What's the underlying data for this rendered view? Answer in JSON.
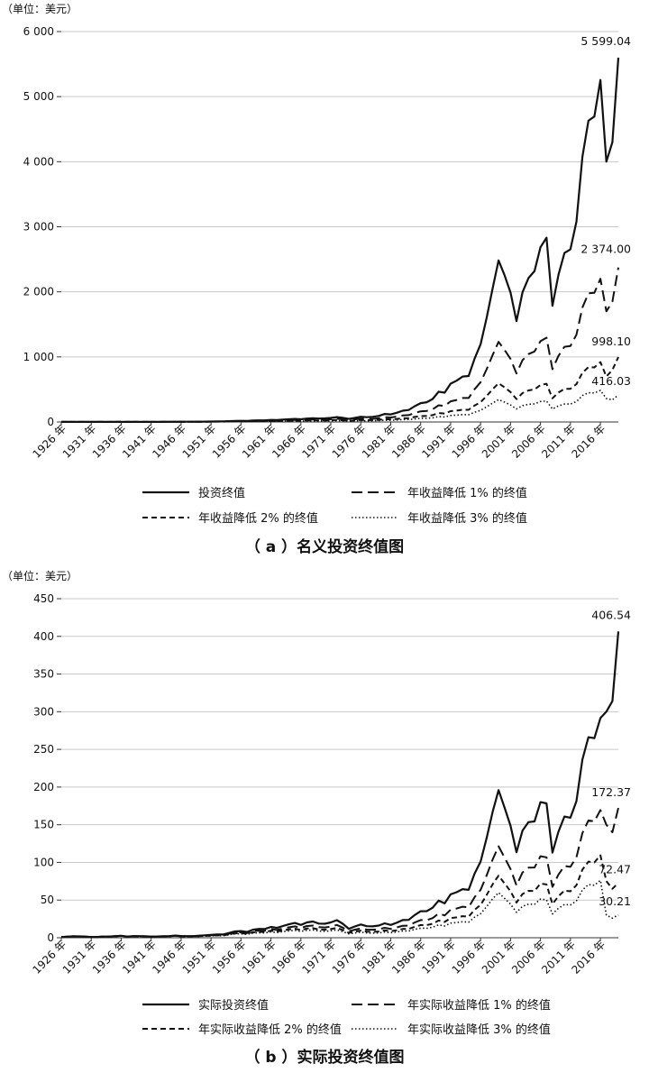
{
  "chart_data": [
    {
      "type": "line",
      "unit": "（单位：美元）",
      "caption": "（ a ）名义投资终值图",
      "ylim": [
        0,
        6000
      ],
      "yticks": [
        0,
        1000,
        2000,
        3000,
        4000,
        5000,
        6000
      ],
      "ytick_labels": [
        "0",
        "1 000",
        "2 000",
        "3 000",
        "4 000",
        "5 000",
        "6 000"
      ],
      "grid": true,
      "legend_position": "bottom",
      "x": [
        1926,
        1927,
        1928,
        1929,
        1930,
        1931,
        1932,
        1933,
        1934,
        1935,
        1936,
        1937,
        1938,
        1939,
        1940,
        1941,
        1942,
        1943,
        1944,
        1945,
        1946,
        1947,
        1948,
        1949,
        1950,
        1951,
        1952,
        1953,
        1954,
        1955,
        1956,
        1957,
        1958,
        1959,
        1960,
        1961,
        1962,
        1963,
        1964,
        1965,
        1966,
        1967,
        1968,
        1969,
        1970,
        1971,
        1972,
        1973,
        1974,
        1975,
        1976,
        1977,
        1978,
        1979,
        1980,
        1981,
        1982,
        1983,
        1984,
        1985,
        1986,
        1987,
        1988,
        1989,
        1990,
        1991,
        1992,
        1993,
        1994,
        1995,
        1996,
        1997,
        1998,
        1999,
        2000,
        2001,
        2002,
        2003,
        2004,
        2005,
        2006,
        2007,
        2008,
        2009,
        2010,
        2011,
        2012,
        2013,
        2014,
        2015,
        2016,
        2017,
        2018,
        2019
      ],
      "xtick_labels": [
        "1926 年",
        "1931 年",
        "1936 年",
        "1941 年",
        "1946 年",
        "1951 年",
        "1956 年",
        "1961 年",
        "1966 年",
        "1971 年",
        "1976 年",
        "1981 年",
        "1986 年",
        "1991 年",
        "1996 年",
        "2001 年",
        "2006 年",
        "2011 年",
        "2016 年"
      ],
      "series": [
        {
          "name": "投资终值",
          "dash": "solid",
          "final_label": "5 599.04",
          "values": [
            1.0,
            1.4,
            2.0,
            1.8,
            1.4,
            0.8,
            0.8,
            1.2,
            1.2,
            1.7,
            2.2,
            1.4,
            1.9,
            1.9,
            1.7,
            1.5,
            1.8,
            2.3,
            2.7,
            3.7,
            3.4,
            3.6,
            3.7,
            4.4,
            5.7,
            7.0,
            8.2,
            8.2,
            12.5,
            16.5,
            17.6,
            15.7,
            22.4,
            25.1,
            25.3,
            32.0,
            29.3,
            35.9,
            41.7,
            46.8,
            42.2,
            52.2,
            58.0,
            53.1,
            55.2,
            63.0,
            74.9,
            63.9,
            47.0,
            64.4,
            79.7,
            74.0,
            78.8,
            93.4,
            123,
            117,
            141,
            173,
            184,
            243,
            289,
            303,
            354,
            466,
            451,
            589,
            634,
            698,
            707,
            973,
            1196,
            1595,
            2051,
            2483,
            2257,
            1989,
            1549,
            1994,
            2211,
            2320,
            2686,
            2833,
            1785,
            2257,
            2597,
            2652,
            3077,
            4073,
            4630,
            4694,
            5256,
            4000,
            4300,
            5599.04
          ]
        },
        {
          "name": "年收益降低 1% 的终值",
          "dash": "long",
          "final_label": "2 374.00",
          "values": [
            1.0,
            1.4,
            2.0,
            1.8,
            1.4,
            0.8,
            0.8,
            1.2,
            1.2,
            1.7,
            2.2,
            1.4,
            1.9,
            1.9,
            1.7,
            1.4,
            1.7,
            2.1,
            2.5,
            3.3,
            3.0,
            3.2,
            3.2,
            3.8,
            4.8,
            5.8,
            6.7,
            6.6,
            9.9,
            12.9,
            13.6,
            12.0,
            17.0,
            18.8,
            18.7,
            23.4,
            21.2,
            25.7,
            29.6,
            32.8,
            29.3,
            35.9,
            39.5,
            35.8,
            36.8,
            41.6,
            48.9,
            41.3,
            30.1,
            40.8,
            50.0,
            45.9,
            48.4,
            56.8,
            74.1,
            69.9,
            83.5,
            101,
            106,
            139,
            164,
            170,
            196,
            256,
            245,
            317,
            338,
            368,
            369,
            503,
            612,
            808,
            1028,
            1232,
            1109,
            968,
            746,
            950,
            1044,
            1084,
            1242,
            1296,
            810,
            1014,
            1155,
            1167,
            1341,
            1757,
            1978,
            1985,
            2200,
            1700,
            1850,
            2374.0
          ]
        },
        {
          "name": "年收益降低 2% 的终值",
          "dash": "medium",
          "final_label": "998.10",
          "values": [
            1.0,
            1.4,
            2.0,
            1.8,
            1.4,
            0.8,
            0.8,
            1.2,
            1.2,
            1.7,
            2.2,
            1.4,
            1.9,
            1.9,
            1.7,
            1.3,
            1.6,
            2.0,
            2.3,
            3.0,
            2.7,
            2.8,
            2.8,
            3.3,
            4.1,
            4.9,
            5.5,
            5.4,
            7.9,
            10.1,
            10.5,
            9.2,
            12.8,
            13.9,
            13.7,
            16.9,
            15.1,
            18.1,
            20.6,
            22.6,
            19.9,
            24.1,
            26.3,
            23.5,
            23.9,
            26.7,
            31.0,
            25.9,
            18.7,
            25.1,
            30.4,
            27.6,
            28.8,
            33.5,
            43.2,
            40.3,
            47.7,
            57.2,
            59.5,
            77.0,
            90.0,
            92.4,
            105,
            137,
            129,
            166,
            175,
            189,
            187,
            253,
            305,
            399,
            502,
            596,
            532,
            460,
            352,
            445,
            485,
            500,
            568,
            587,
            364,
            452,
            509,
            510,
            582,
            756,
            843,
            838,
            920,
            700,
            800,
            998.1
          ]
        },
        {
          "name": "年收益降低 3% 的终值",
          "dash": "dotted",
          "final_label": "416.03",
          "values": [
            1.0,
            1.4,
            1.9,
            1.7,
            1.3,
            0.8,
            0.8,
            1.1,
            1.1,
            1.5,
            1.9,
            1.2,
            1.6,
            1.6,
            1.5,
            1.1,
            1.4,
            1.7,
            1.9,
            2.5,
            2.3,
            2.3,
            2.3,
            2.7,
            3.3,
            3.9,
            4.4,
            4.3,
            6.3,
            7.9,
            8.1,
            7.1,
            9.8,
            10.6,
            10.3,
            12.6,
            11.2,
            13.3,
            15.0,
            16.3,
            14.3,
            17.2,
            18.6,
            16.5,
            16.6,
            18.4,
            21.3,
            17.6,
            12.6,
            16.8,
            20.1,
            18.1,
            18.8,
            21.7,
            27.8,
            25.7,
            30.2,
            36.0,
            37.2,
            47.8,
            55.5,
            56.6,
            64.2,
            83,
            78,
            100,
            105,
            113,
            111,
            149,
            179,
            233,
            291,
            343,
            305,
            262,
            199,
            251,
            271,
            278,
            314,
            323,
            200,
            246,
            276,
            276,
            313,
            406,
            450,
            445,
            485,
            360,
            340,
            416.03
          ]
        }
      ],
      "legend": [
        "投资终值",
        "年收益降低 1% 的终值",
        "年收益降低 2% 的终值",
        "年收益降低 3% 的终值"
      ]
    },
    {
      "type": "line",
      "unit": "（单位：美元）",
      "caption": "（ b ）实际投资终值图",
      "ylim": [
        0,
        450
      ],
      "yticks": [
        0,
        50,
        100,
        150,
        200,
        250,
        300,
        350,
        400,
        450
      ],
      "ytick_labels": [
        "0",
        "50",
        "100",
        "150",
        "200",
        "250",
        "300",
        "350",
        "400",
        "450"
      ],
      "grid": true,
      "legend_position": "bottom",
      "x": [
        1926,
        1927,
        1928,
        1929,
        1930,
        1931,
        1932,
        1933,
        1934,
        1935,
        1936,
        1937,
        1938,
        1939,
        1940,
        1941,
        1942,
        1943,
        1944,
        1945,
        1946,
        1947,
        1948,
        1949,
        1950,
        1951,
        1952,
        1953,
        1954,
        1955,
        1956,
        1957,
        1958,
        1959,
        1960,
        1961,
        1962,
        1963,
        1964,
        1965,
        1966,
        1967,
        1968,
        1969,
        1970,
        1971,
        1972,
        1973,
        1974,
        1975,
        1976,
        1977,
        1978,
        1979,
        1980,
        1981,
        1982,
        1983,
        1984,
        1985,
        1986,
        1987,
        1988,
        1989,
        1990,
        1991,
        1992,
        1993,
        1994,
        1995,
        1996,
        1997,
        1998,
        1999,
        2000,
        2001,
        2002,
        2003,
        2004,
        2005,
        2006,
        2007,
        2008,
        2009,
        2010,
        2011,
        2012,
        2013,
        2014,
        2015,
        2016,
        2017,
        2018,
        2019
      ],
      "xtick_labels": [
        "1926 年",
        "1931 年",
        "1936 年",
        "1941 年",
        "1946 年",
        "1951 年",
        "1956 年",
        "1961 年",
        "1966 年",
        "1971 年",
        "1976 年",
        "1981 年",
        "1986 年",
        "1991 年",
        "1996 年",
        "2001 年",
        "2006 年",
        "2011 年",
        "2016 年"
      ],
      "series": [
        {
          "name": "实际投资终值",
          "dash": "solid",
          "final_label": "406.54",
          "values": [
            1.0,
            1.4,
            1.9,
            1.8,
            1.5,
            1.0,
            1.1,
            1.6,
            1.5,
            2.1,
            2.6,
            1.6,
            2.2,
            2.2,
            2.0,
            1.6,
            1.7,
            2.0,
            2.2,
            2.9,
            2.3,
            2.2,
            2.2,
            2.7,
            3.2,
            3.7,
            4.3,
            4.3,
            6.4,
            8.4,
            8.8,
            7.6,
            10.6,
            11.7,
            11.6,
            14.4,
            13.0,
            15.6,
            17.8,
            19.6,
            17.0,
            20.4,
            21.6,
            18.8,
            18.5,
            20.3,
            23.3,
            18.5,
            11.9,
            15.0,
            17.6,
            15.3,
            15.1,
            16.1,
            19.1,
            17.0,
            19.9,
            23.4,
            23.7,
            30.2,
            35.2,
            35.3,
            39.8,
            49.3,
            45.6,
            57.6,
            60.4,
            64.5,
            63.5,
            85.1,
            101.1,
            132.0,
            166.8,
            195.9,
            172.9,
            148.5,
            113.5,
            142.3,
            153.4,
            154.4,
            180.0,
            178.3,
            113.0,
            140.6,
            160.8,
            159.3,
            181.3,
            236.4,
            266.2,
            264.8,
            291.6,
            300.0,
            314.0,
            406.54
          ]
        },
        {
          "name": "年实际收益降低 1% 的终值",
          "dash": "long",
          "final_label": "172.37",
          "values": [
            1.0,
            1.4,
            1.9,
            1.8,
            1.5,
            1.0,
            1.1,
            1.5,
            1.5,
            2.0,
            2.5,
            1.5,
            2.0,
            2.0,
            1.8,
            1.5,
            1.6,
            1.9,
            2.1,
            2.7,
            2.1,
            2.0,
            2.0,
            2.4,
            2.8,
            3.2,
            3.7,
            3.6,
            5.4,
            7.0,
            7.3,
            6.2,
            8.7,
            9.5,
            9.3,
            11.5,
            10.3,
            12.2,
            13.8,
            15.1,
            13.0,
            15.5,
            16.2,
            14.0,
            13.7,
            14.9,
            17.0,
            13.4,
            8.6,
            10.7,
            12.5,
            10.8,
            10.6,
            11.2,
            13.2,
            11.7,
            13.6,
            15.9,
            16.0,
            20.2,
            23.4,
            23.3,
            26.1,
            32.2,
            29.6,
            37.2,
            38.8,
            41.2,
            40.3,
            53.8,
            63.5,
            82.5,
            103.8,
            121.3,
            106.6,
            91.2,
            69.4,
            86.6,
            93.0,
            93.2,
            108.2,
            106.8,
            67.5,
            83.7,
            95.3,
            94.1,
            106.8,
            138.8,
            155.7,
            154.4,
            169.5,
            150.0,
            140.0,
            172.37
          ]
        },
        {
          "name": "年实际收益降低 2% 的终值",
          "dash": "medium",
          "final_label": "72.47",
          "values": [
            1.0,
            1.4,
            1.9,
            1.8,
            1.5,
            1.0,
            1.1,
            1.5,
            1.4,
            1.9,
            2.4,
            1.5,
            1.9,
            1.9,
            1.7,
            1.4,
            1.5,
            1.7,
            1.9,
            2.5,
            1.9,
            1.8,
            1.8,
            2.1,
            2.5,
            2.8,
            3.2,
            3.1,
            4.6,
            5.9,
            6.1,
            5.2,
            7.2,
            7.8,
            7.6,
            9.3,
            8.3,
            9.8,
            11.0,
            12.0,
            10.3,
            12.2,
            12.7,
            10.9,
            10.6,
            11.5,
            13.0,
            10.2,
            6.5,
            8.1,
            9.4,
            8.1,
            7.9,
            8.3,
            9.7,
            8.6,
            9.9,
            11.6,
            11.6,
            14.6,
            16.8,
            16.7,
            18.6,
            22.8,
            20.9,
            26.1,
            27.1,
            28.6,
            27.9,
            37.1,
            43.6,
            56.5,
            70.8,
            82.4,
            72.2,
            61.6,
            46.7,
            58.1,
            62.2,
            62.1,
            71.9,
            70.7,
            44.6,
            55.1,
            62.6,
            61.6,
            69.7,
            90.3,
            101.0,
            99.9,
            109.4,
            75.0,
            65.0,
            72.47
          ]
        },
        {
          "name": "年实际收益降低 3% 的终值",
          "dash": "dotted",
          "final_label": "30.21",
          "values": [
            1.0,
            1.4,
            1.9,
            1.7,
            1.4,
            0.9,
            1.0,
            1.4,
            1.3,
            1.8,
            2.3,
            1.4,
            1.8,
            1.8,
            1.6,
            1.3,
            1.4,
            1.6,
            1.8,
            2.3,
            1.7,
            1.6,
            1.6,
            1.9,
            2.2,
            2.5,
            2.8,
            2.7,
            4.0,
            5.1,
            5.2,
            4.4,
            6.1,
            6.6,
            6.4,
            7.8,
            6.9,
            8.1,
            9.1,
            9.8,
            8.4,
            9.9,
            10.3,
            8.8,
            8.5,
            9.2,
            10.4,
            8.1,
            5.1,
            6.4,
            7.4,
            6.3,
            6.1,
            6.4,
            7.5,
            6.6,
            7.6,
            8.9,
            8.8,
            11.1,
            12.7,
            12.6,
            14.0,
            17.1,
            15.6,
            19.4,
            20.1,
            21.2,
            20.6,
            27.3,
            32.0,
            41.3,
            51.6,
            59.9,
            52.4,
            44.5,
            33.7,
            41.8,
            44.6,
            44.4,
            51.3,
            50.3,
            31.7,
            39.0,
            44.2,
            43.4,
            49.0,
            63.3,
            70.6,
            69.7,
            76.1,
            30.0,
            26.0,
            30.21
          ]
        }
      ],
      "legend": [
        "实际投资终值",
        "年实际收益降低 1% 的终值",
        "年实际收益降低 2% 的终值",
        "年实际收益降低 3% 的终值"
      ]
    }
  ]
}
